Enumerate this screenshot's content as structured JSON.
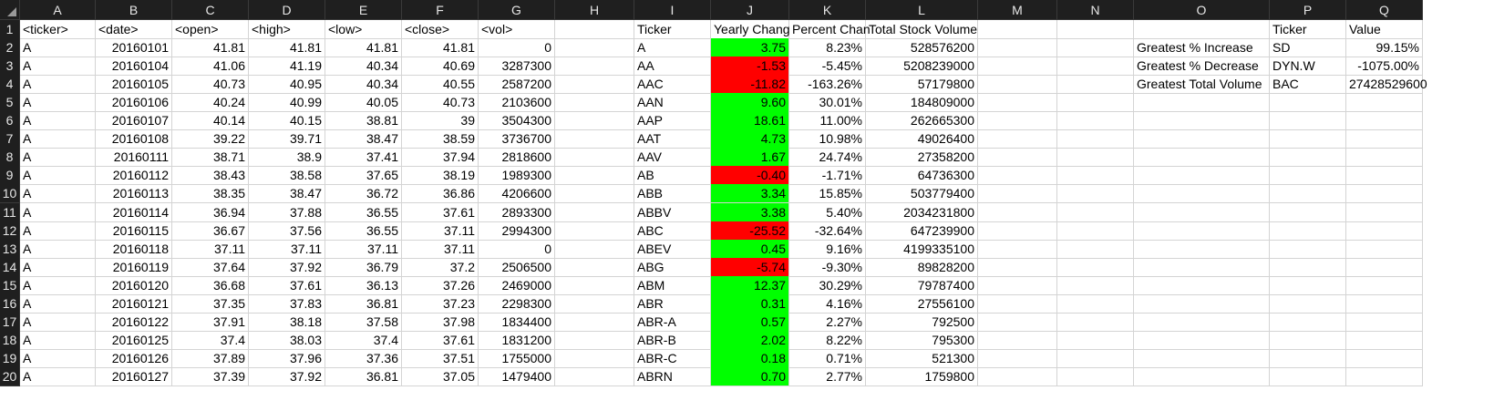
{
  "columns": [
    "A",
    "B",
    "C",
    "D",
    "E",
    "F",
    "G",
    "H",
    "I",
    "J",
    "K",
    "L",
    "M",
    "N",
    "O",
    "P",
    "Q"
  ],
  "row_numbers": [
    "1",
    "2",
    "3",
    "4",
    "5",
    "6",
    "7",
    "8",
    "9",
    "10",
    "11",
    "12",
    "13",
    "14",
    "15",
    "16",
    "17",
    "18",
    "19",
    "20"
  ],
  "colors": {
    "positive_fill": "#00ff00",
    "negative_fill": "#ff0000",
    "header_bg": "#1f1f1f",
    "gridline": "#d4d4d4"
  },
  "raw_headers": [
    "<ticker>",
    "<date>",
    "<open>",
    "<high>",
    "<low>",
    "<close>",
    "<vol>"
  ],
  "raw_rows": [
    [
      "A",
      "20160101",
      "41.81",
      "41.81",
      "41.81",
      "41.81",
      "0"
    ],
    [
      "A",
      "20160104",
      "41.06",
      "41.19",
      "40.34",
      "40.69",
      "3287300"
    ],
    [
      "A",
      "20160105",
      "40.73",
      "40.95",
      "40.34",
      "40.55",
      "2587200"
    ],
    [
      "A",
      "20160106",
      "40.24",
      "40.99",
      "40.05",
      "40.73",
      "2103600"
    ],
    [
      "A",
      "20160107",
      "40.14",
      "40.15",
      "38.81",
      "39",
      "3504300"
    ],
    [
      "A",
      "20160108",
      "39.22",
      "39.71",
      "38.47",
      "38.59",
      "3736700"
    ],
    [
      "A",
      "20160111",
      "38.71",
      "38.9",
      "37.41",
      "37.94",
      "2818600"
    ],
    [
      "A",
      "20160112",
      "38.43",
      "38.58",
      "37.65",
      "38.19",
      "1989300"
    ],
    [
      "A",
      "20160113",
      "38.35",
      "38.47",
      "36.72",
      "36.86",
      "4206600"
    ],
    [
      "A",
      "20160114",
      "36.94",
      "37.88",
      "36.55",
      "37.61",
      "2893300"
    ],
    [
      "A",
      "20160115",
      "36.67",
      "37.56",
      "36.55",
      "37.11",
      "2994300"
    ],
    [
      "A",
      "20160118",
      "37.11",
      "37.11",
      "37.11",
      "37.11",
      "0"
    ],
    [
      "A",
      "20160119",
      "37.64",
      "37.92",
      "36.79",
      "37.2",
      "2506500"
    ],
    [
      "A",
      "20160120",
      "36.68",
      "37.61",
      "36.13",
      "37.26",
      "2469000"
    ],
    [
      "A",
      "20160121",
      "37.35",
      "37.83",
      "36.81",
      "37.23",
      "2298300"
    ],
    [
      "A",
      "20160122",
      "37.91",
      "38.18",
      "37.58",
      "37.98",
      "1834400"
    ],
    [
      "A",
      "20160125",
      "37.4",
      "38.03",
      "37.4",
      "37.61",
      "1831200"
    ],
    [
      "A",
      "20160126",
      "37.89",
      "37.96",
      "37.36",
      "37.51",
      "1755000"
    ],
    [
      "A",
      "20160127",
      "37.39",
      "37.92",
      "36.81",
      "37.05",
      "1479400"
    ]
  ],
  "summary_headers": [
    "Ticker",
    "Yearly Chang",
    "Percent Chan",
    "Total Stock Volume"
  ],
  "summary_rows": [
    {
      "ticker": "A",
      "yearly_change": "3.75",
      "percent_change": "8.23%",
      "total_volume": "528576200",
      "status": "positive"
    },
    {
      "ticker": "AA",
      "yearly_change": "-1.53",
      "percent_change": "-5.45%",
      "total_volume": "5208239000",
      "status": "negative"
    },
    {
      "ticker": "AAC",
      "yearly_change": "-11.82",
      "percent_change": "-163.26%",
      "total_volume": "57179800",
      "status": "negative"
    },
    {
      "ticker": "AAN",
      "yearly_change": "9.60",
      "percent_change": "30.01%",
      "total_volume": "184809000",
      "status": "positive"
    },
    {
      "ticker": "AAP",
      "yearly_change": "18.61",
      "percent_change": "11.00%",
      "total_volume": "262665300",
      "status": "positive"
    },
    {
      "ticker": "AAT",
      "yearly_change": "4.73",
      "percent_change": "10.98%",
      "total_volume": "49026400",
      "status": "positive"
    },
    {
      "ticker": "AAV",
      "yearly_change": "1.67",
      "percent_change": "24.74%",
      "total_volume": "27358200",
      "status": "positive"
    },
    {
      "ticker": "AB",
      "yearly_change": "-0.40",
      "percent_change": "-1.71%",
      "total_volume": "64736300",
      "status": "negative"
    },
    {
      "ticker": "ABB",
      "yearly_change": "3.34",
      "percent_change": "15.85%",
      "total_volume": "503779400",
      "status": "positive"
    },
    {
      "ticker": "ABBV",
      "yearly_change": "3.38",
      "percent_change": "5.40%",
      "total_volume": "2034231800",
      "status": "positive"
    },
    {
      "ticker": "ABC",
      "yearly_change": "-25.52",
      "percent_change": "-32.64%",
      "total_volume": "647239900",
      "status": "negative"
    },
    {
      "ticker": "ABEV",
      "yearly_change": "0.45",
      "percent_change": "9.16%",
      "total_volume": "4199335100",
      "status": "positive"
    },
    {
      "ticker": "ABG",
      "yearly_change": "-5.74",
      "percent_change": "-9.30%",
      "total_volume": "89828200",
      "status": "negative"
    },
    {
      "ticker": "ABM",
      "yearly_change": "12.37",
      "percent_change": "30.29%",
      "total_volume": "79787400",
      "status": "positive"
    },
    {
      "ticker": "ABR",
      "yearly_change": "0.31",
      "percent_change": "4.16%",
      "total_volume": "27556100",
      "status": "positive"
    },
    {
      "ticker": "ABR-A",
      "yearly_change": "0.57",
      "percent_change": "2.27%",
      "total_volume": "792500",
      "status": "positive"
    },
    {
      "ticker": "ABR-B",
      "yearly_change": "2.02",
      "percent_change": "8.22%",
      "total_volume": "795300",
      "status": "positive"
    },
    {
      "ticker": "ABR-C",
      "yearly_change": "0.18",
      "percent_change": "0.71%",
      "total_volume": "521300",
      "status": "positive"
    },
    {
      "ticker": "ABRN",
      "yearly_change": "0.70",
      "percent_change": "2.77%",
      "total_volume": "1759800",
      "status": "positive"
    }
  ],
  "greatest_headers": [
    "",
    "Ticker",
    "Value"
  ],
  "greatest_rows": [
    {
      "label": "Greatest % Increase",
      "ticker": "SD",
      "value": "99.15%"
    },
    {
      "label": "Greatest % Decrease",
      "ticker": "DYN.W",
      "value": "-1075.00%"
    },
    {
      "label": "Greatest Total Volume",
      "ticker": "BAC",
      "value": "27428529600"
    }
  ]
}
